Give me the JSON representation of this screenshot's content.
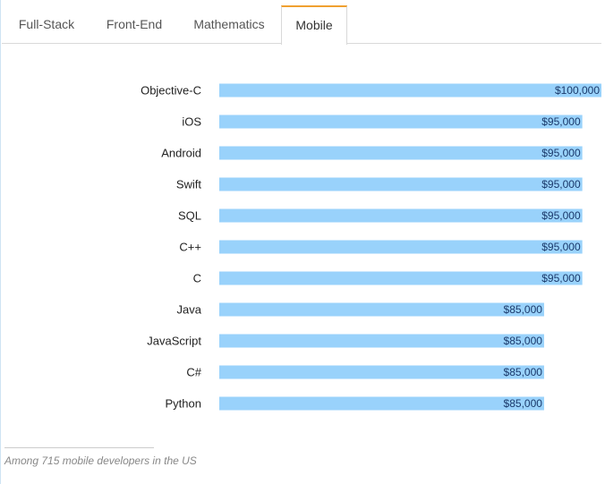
{
  "tabs": [
    {
      "label": "Full-Stack",
      "active": false
    },
    {
      "label": "Front-End",
      "active": false
    },
    {
      "label": "Mathematics",
      "active": false
    },
    {
      "label": "Mobile",
      "active": true
    }
  ],
  "colors": {
    "bar": "#99d2fb",
    "active_tab_accent": "#f0a030"
  },
  "chart_data": {
    "type": "bar",
    "orientation": "horizontal",
    "categories": [
      "Objective-C",
      "iOS",
      "Android",
      "Swift",
      "SQL",
      "C++",
      "C",
      "Java",
      "JavaScript",
      "C#",
      "Python"
    ],
    "values": [
      100000,
      95000,
      95000,
      95000,
      95000,
      95000,
      95000,
      85000,
      85000,
      85000,
      85000
    ],
    "value_labels": [
      "$100,000",
      "$95,000",
      "$95,000",
      "$95,000",
      "$95,000",
      "$95,000",
      "$95,000",
      "$85,000",
      "$85,000",
      "$85,000",
      "$85,000"
    ],
    "xlim": [
      0,
      100000
    ],
    "grid": false,
    "title": "",
    "xlabel": "",
    "ylabel": ""
  },
  "footnote": "Among 715 mobile developers in the US"
}
